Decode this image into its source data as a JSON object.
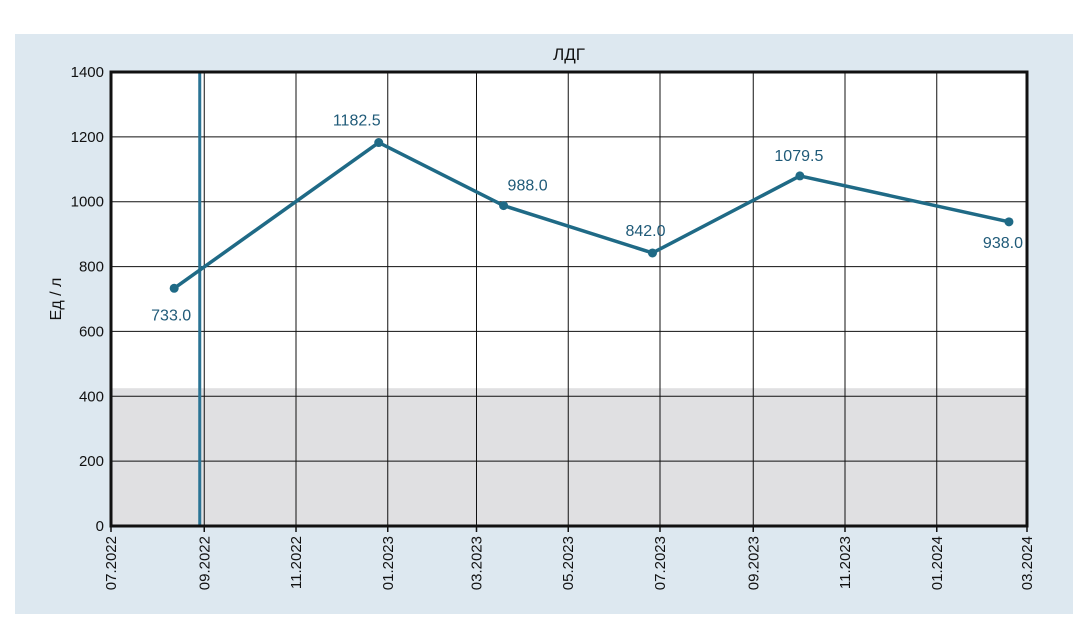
{
  "chart_data": {
    "type": "line",
    "title": "ЛДГ",
    "ylabel": "Ед / л",
    "xlabel": "",
    "ylim": [
      0,
      1400
    ],
    "yticks": [
      0,
      200,
      400,
      600,
      800,
      1000,
      1200,
      1400
    ],
    "xlim": [
      "2022-07-01",
      "2024-03-01"
    ],
    "xticks": [
      {
        "date": "2022-07-01",
        "label": "07.2022"
      },
      {
        "date": "2022-09-01",
        "label": "09.2022"
      },
      {
        "date": "2022-11-01",
        "label": "11.2022"
      },
      {
        "date": "2023-01-01",
        "label": "01.2023"
      },
      {
        "date": "2023-03-01",
        "label": "03.2023"
      },
      {
        "date": "2023-05-01",
        "label": "05.2023"
      },
      {
        "date": "2023-07-01",
        "label": "07.2023"
      },
      {
        "date": "2023-09-01",
        "label": "09.2023"
      },
      {
        "date": "2023-11-01",
        "label": "11.2023"
      },
      {
        "date": "2024-01-01",
        "label": "01.2024"
      },
      {
        "date": "2024-03-01",
        "label": "03.2024"
      }
    ],
    "series": [
      {
        "points": [
          {
            "x": "2022-08-12",
            "y": 733.0,
            "label": "733.0"
          },
          {
            "x": "2022-12-26",
            "y": 1182.5,
            "label": "1182.5"
          },
          {
            "x": "2023-03-19",
            "y": 988.0,
            "label": "988.0"
          },
          {
            "x": "2023-06-26",
            "y": 842.0,
            "label": "842.0"
          },
          {
            "x": "2023-10-02",
            "y": 1079.5,
            "label": "1079.5"
          },
          {
            "x": "2024-02-18",
            "y": 938.0,
            "label": "938.0"
          }
        ]
      }
    ],
    "reference_band": {
      "from": 0,
      "to": 425
    },
    "vertical_marker": {
      "x": "2022-08-29"
    },
    "grid": true,
    "colors": {
      "line": "#1f6a86",
      "band": "#e0e0e2",
      "background": "#dde8f0",
      "marker": "#2a7394"
    }
  }
}
